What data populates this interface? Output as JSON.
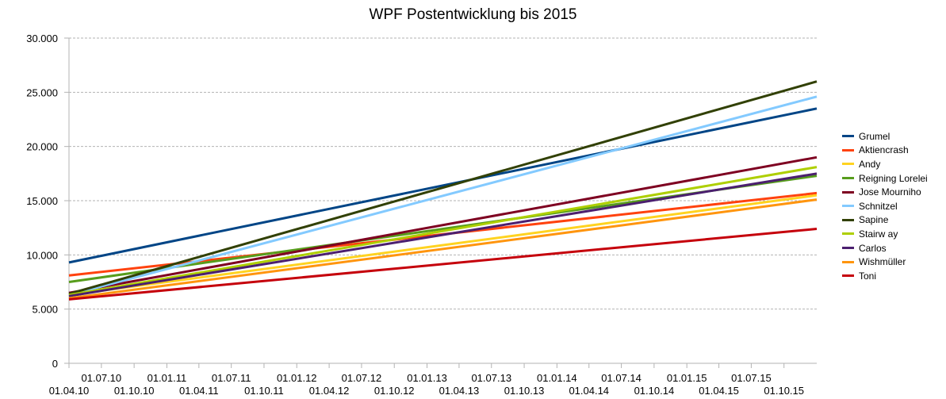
{
  "chart_data": {
    "type": "line",
    "title": "WPF Postentwicklung bis 2015",
    "xlabel": "",
    "ylabel": "",
    "x_ticks_lower": [
      "01.04.10",
      "01.10.10",
      "01.04.11",
      "01.10.11",
      "01.04.12",
      "01.10.12",
      "01.04.13",
      "01.10.13",
      "01.04.14",
      "01.10.14",
      "01.04.15",
      "01.10.15"
    ],
    "x_ticks_upper": [
      "01.07.10",
      "01.01.11",
      "01.07.11",
      "01.01.12",
      "01.07.12",
      "01.01.13",
      "01.07.13",
      "01.01.14",
      "01.07.14",
      "01.01.15",
      "01.07.15"
    ],
    "x_range": [
      "01.04.10",
      "01.01.16"
    ],
    "y_ticks": [
      "0",
      "5.000",
      "10.000",
      "15.000",
      "20.000",
      "25.000",
      "30.000"
    ],
    "ylim": [
      0,
      30000
    ],
    "grid": "horizontal dashed",
    "legend_position": "right",
    "series": [
      {
        "name": "Grumel",
        "color": "#004586",
        "x": [
          "01.04.10",
          "01.01.16"
        ],
        "values": [
          9300,
          23500
        ]
      },
      {
        "name": "Aktiencrash",
        "color": "#ff420e",
        "x": [
          "01.04.10",
          "01.01.16"
        ],
        "values": [
          8100,
          15700
        ]
      },
      {
        "name": "Andy",
        "color": "#ffd320",
        "x": [
          "01.04.10",
          "01.01.16"
        ],
        "values": [
          6300,
          15500
        ]
      },
      {
        "name": "Reigning Lorelei",
        "color": "#579d1c",
        "x": [
          "01.04.10",
          "01.01.16"
        ],
        "values": [
          7500,
          17300
        ]
      },
      {
        "name": "Jose Mourniho",
        "color": "#7e0021",
        "x": [
          "01.04.10",
          "01.01.16"
        ],
        "values": [
          6500,
          19000
        ]
      },
      {
        "name": "Schnitzel",
        "color": "#83caff",
        "x": [
          "01.04.10",
          "01.01.16"
        ],
        "values": [
          6300,
          24600
        ]
      },
      {
        "name": "Sapine",
        "color": "#314004",
        "x": [
          "01.04.10",
          "01.01.16"
        ],
        "values": [
          6400,
          26000
        ]
      },
      {
        "name": "Stairw ay",
        "color": "#aecf00",
        "x": [
          "01.04.10",
          "01.01.16"
        ],
        "values": [
          6300,
          18100
        ]
      },
      {
        "name": "Carlos",
        "color": "#4b1f6f",
        "x": [
          "01.04.10",
          "01.01.16"
        ],
        "values": [
          6200,
          17500
        ]
      },
      {
        "name": "Wishmüller",
        "color": "#ff950e",
        "x": [
          "01.04.10",
          "01.01.16"
        ],
        "values": [
          6000,
          15100
        ]
      },
      {
        "name": "Toni",
        "color": "#c5000b",
        "x": [
          "01.04.10",
          "01.01.16"
        ],
        "values": [
          5900,
          12400
        ]
      }
    ]
  }
}
